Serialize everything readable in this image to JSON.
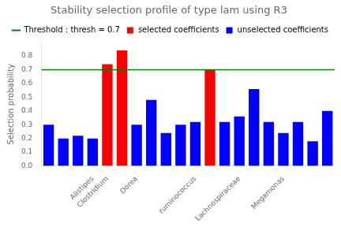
{
  "chart_data": {
    "type": "bar",
    "title": "Stability selection profile of type lam using R3",
    "ylabel": "Selection probability",
    "categories": [
      null,
      null,
      null,
      "Alistipes",
      "Clostridium",
      null,
      "Dorea",
      null,
      null,
      null,
      "ruminococcus",
      null,
      null,
      "Lachnospiraceae",
      null,
      null,
      "Megamonas",
      null,
      null,
      null
    ],
    "values": [
      0.3,
      0.2,
      0.22,
      0.2,
      0.74,
      0.84,
      0.3,
      0.48,
      0.24,
      0.3,
      0.32,
      0.7,
      0.32,
      0.36,
      0.56,
      0.32,
      0.24,
      0.32,
      0.18,
      0.4
    ],
    "colors": [
      "blue",
      "blue",
      "blue",
      "blue",
      "red",
      "red",
      "blue",
      "blue",
      "blue",
      "blue",
      "blue",
      "red",
      "blue",
      "blue",
      "blue",
      "blue",
      "blue",
      "blue",
      "blue",
      "blue"
    ],
    "threshold": {
      "value": 0.7,
      "label": "Threshold : thresh = 0.7",
      "color": "green"
    },
    "color_key": [
      {
        "name": "selected coefficients",
        "color": "red"
      },
      {
        "name": "unselected coefficients",
        "color": "blue"
      }
    ],
    "legend": "upper right",
    "ylim": [
      0.0,
      0.9
    ],
    "yticks": [
      {
        "value": 0.0,
        "label": "0.0"
      },
      0.1,
      0.2,
      0.3,
      0.4,
      0.5,
      0.6,
      0.7,
      0.8
    ],
    "grid": false
  }
}
